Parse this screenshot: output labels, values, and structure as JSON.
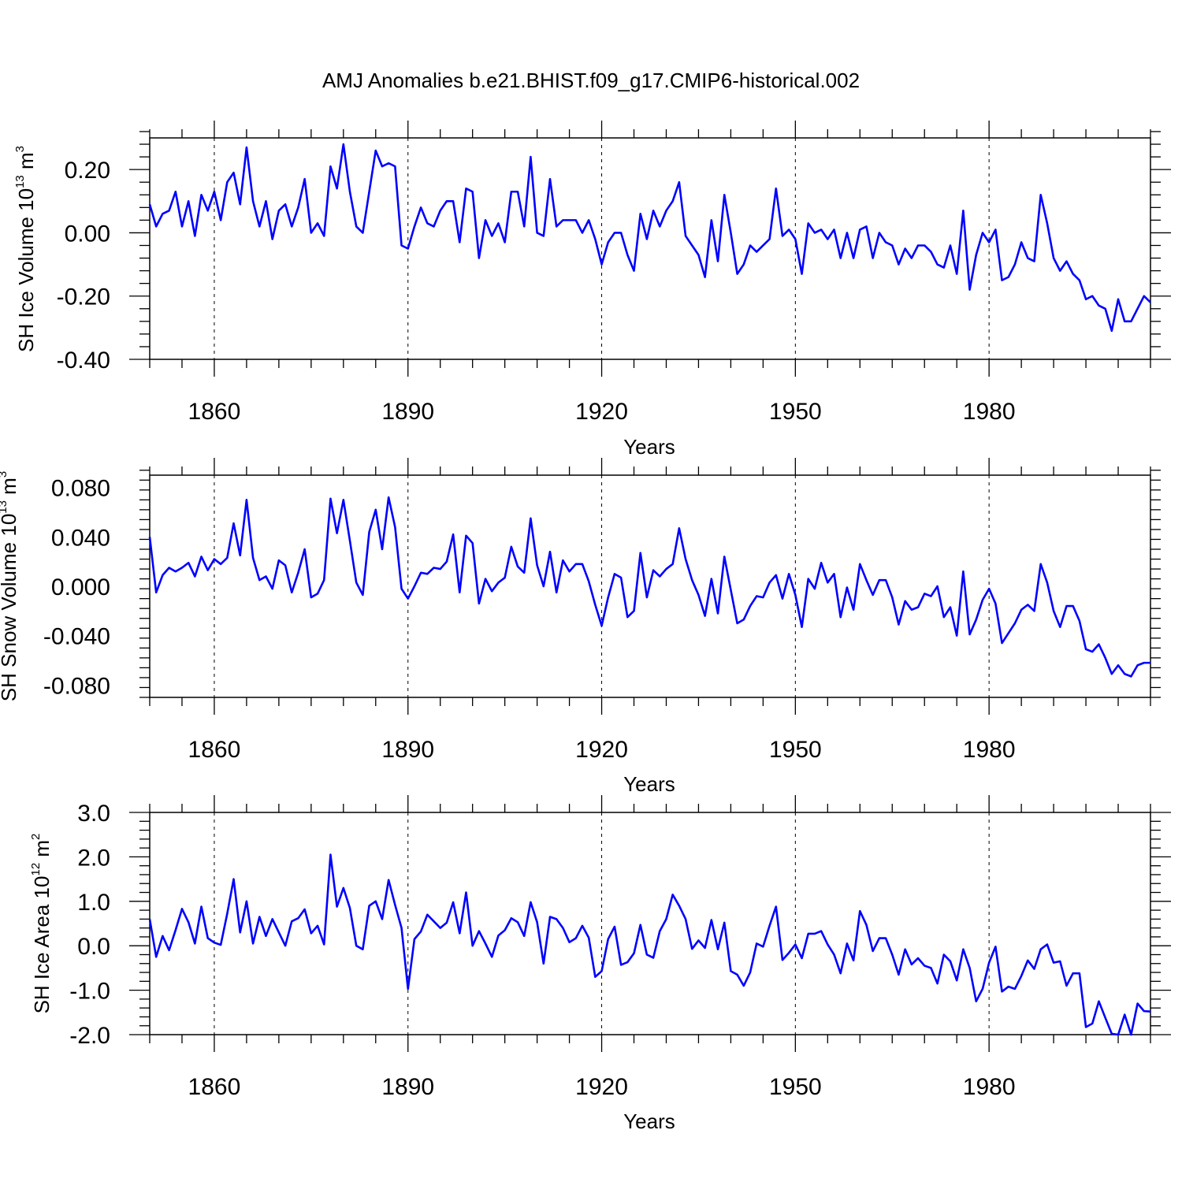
{
  "title": "AMJ Anomalies b.e21.BHIST.f09_g17.CMIP6-historical.002",
  "colors": {
    "series": "#0000ff",
    "frame": "#000000",
    "grid": "#000000"
  },
  "chart_data": [
    {
      "type": "line",
      "ylabel": {
        "text": "SH Ice Volume 10",
        "sup": "13",
        "unit": " m",
        "unit_sup": "3"
      },
      "xlabel": "Years",
      "xlim": [
        1850,
        2005
      ],
      "ylim": [
        -0.4,
        0.3
      ],
      "xticks": [
        1860,
        1890,
        1920,
        1950,
        1980
      ],
      "xtick_labels": [
        "1860",
        "1890",
        "1920",
        "1950",
        "1980"
      ],
      "yticks": [
        -0.4,
        -0.2,
        0.0,
        0.2
      ],
      "ytick_labels": [
        "-0.40",
        "-0.20",
        "0.00",
        "0.20"
      ],
      "grid": "vertical dashed at major x ticks",
      "series": [
        {
          "x_start": 1850,
          "x_step": 1,
          "values": [
            0.09,
            0.02,
            0.06,
            0.07,
            0.13,
            0.02,
            0.1,
            -0.01,
            0.12,
            0.07,
            0.13,
            0.04,
            0.16,
            0.19,
            0.09,
            0.27,
            0.1,
            0.02,
            0.1,
            -0.02,
            0.07,
            0.09,
            0.02,
            0.08,
            0.17,
            0.0,
            0.03,
            -0.01,
            0.21,
            0.14,
            0.28,
            0.13,
            0.02,
            0.0,
            0.13,
            0.26,
            0.21,
            0.22,
            0.21,
            -0.04,
            -0.05,
            0.02,
            0.08,
            0.03,
            0.02,
            0.07,
            0.1,
            0.1,
            -0.03,
            0.14,
            0.13,
            -0.08,
            0.04,
            -0.01,
            0.03,
            -0.03,
            0.13,
            0.13,
            0.02,
            0.24,
            0.0,
            -0.01,
            0.17,
            0.02,
            0.04,
            0.04,
            0.04,
            0.0,
            0.04,
            -0.02,
            -0.1,
            -0.03,
            0.0,
            0.0,
            -0.07,
            -0.12,
            0.06,
            -0.02,
            0.07,
            0.02,
            0.07,
            0.1,
            0.16,
            -0.01,
            -0.04,
            -0.07,
            -0.14,
            0.04,
            -0.09,
            0.12,
            0.0,
            -0.13,
            -0.1,
            -0.04,
            -0.06,
            -0.04,
            -0.02,
            0.14,
            -0.01,
            0.01,
            -0.02,
            -0.13,
            0.03,
            0.0,
            0.01,
            -0.02,
            0.01,
            -0.08,
            0.0,
            -0.08,
            0.01,
            0.02,
            -0.08,
            0.0,
            -0.03,
            -0.04,
            -0.1,
            -0.05,
            -0.08,
            -0.04,
            -0.04,
            -0.06,
            -0.1,
            -0.11,
            -0.04,
            -0.13,
            0.07,
            -0.18,
            -0.07,
            0.0,
            -0.03,
            0.01,
            -0.15,
            -0.14,
            -0.1,
            -0.03,
            -0.08,
            -0.09,
            0.12,
            0.03,
            -0.08,
            -0.12,
            -0.09,
            -0.13,
            -0.15,
            -0.21,
            -0.2,
            -0.23,
            -0.24,
            -0.31,
            -0.21,
            -0.28,
            -0.28,
            -0.24,
            -0.2,
            -0.22
          ]
        }
      ]
    },
    {
      "type": "line",
      "ylabel": {
        "text": "SH Snow Volume 10",
        "sup": "13",
        "unit": " m",
        "unit_sup": "3"
      },
      "xlabel": "Years",
      "xlim": [
        1850,
        2005
      ],
      "ylim": [
        -0.09,
        0.09
      ],
      "xticks": [
        1860,
        1890,
        1920,
        1950,
        1980
      ],
      "xtick_labels": [
        "1860",
        "1890",
        "1920",
        "1950",
        "1980"
      ],
      "yticks": [
        -0.08,
        -0.04,
        0.0,
        0.04,
        0.08
      ],
      "ytick_labels": [
        "-0.080",
        "-0.040",
        "0.000",
        "0.040",
        "0.080"
      ],
      "grid": "vertical dashed at major x ticks",
      "series": [
        {
          "x_start": 1850,
          "x_step": 1,
          "values": [
            0.04,
            -0.005,
            0.009,
            0.015,
            0.012,
            0.015,
            0.019,
            0.008,
            0.024,
            0.013,
            0.022,
            0.018,
            0.023,
            0.051,
            0.025,
            0.07,
            0.023,
            0.005,
            0.008,
            -0.002,
            0.021,
            0.017,
            -0.005,
            0.011,
            0.03,
            -0.009,
            -0.006,
            0.005,
            0.071,
            0.043,
            0.07,
            0.037,
            0.003,
            -0.007,
            0.044,
            0.062,
            0.03,
            0.072,
            0.048,
            -0.002,
            -0.01,
            0.0,
            0.011,
            0.01,
            0.015,
            0.014,
            0.02,
            0.042,
            -0.005,
            0.041,
            0.035,
            -0.014,
            0.006,
            -0.004,
            0.003,
            0.007,
            0.032,
            0.016,
            0.011,
            0.055,
            0.017,
            0.0,
            0.028,
            -0.005,
            0.021,
            0.012,
            0.018,
            0.018,
            0.004,
            -0.015,
            -0.032,
            -0.009,
            0.01,
            0.007,
            -0.025,
            -0.02,
            0.027,
            -0.009,
            0.013,
            0.008,
            0.014,
            0.018,
            0.047,
            0.022,
            0.005,
            -0.007,
            -0.024,
            0.006,
            -0.022,
            0.024,
            -0.003,
            -0.03,
            -0.027,
            -0.016,
            -0.008,
            -0.009,
            0.003,
            0.009,
            -0.01,
            0.01,
            -0.007,
            -0.033,
            0.006,
            -0.002,
            0.019,
            0.003,
            0.01,
            -0.025,
            -0.001,
            -0.019,
            0.018,
            0.005,
            -0.007,
            0.005,
            0.005,
            -0.009,
            -0.031,
            -0.012,
            -0.019,
            -0.017,
            -0.006,
            -0.008,
            0.0,
            -0.025,
            -0.017,
            -0.04,
            0.012,
            -0.039,
            -0.027,
            -0.011,
            -0.002,
            -0.014,
            -0.046,
            -0.038,
            -0.03,
            -0.019,
            -0.015,
            -0.02,
            0.018,
            0.003,
            -0.02,
            -0.033,
            -0.016,
            -0.016,
            -0.028,
            -0.051,
            -0.053,
            -0.047,
            -0.058,
            -0.071,
            -0.064,
            -0.071,
            -0.073,
            -0.064,
            -0.062,
            -0.062
          ]
        }
      ]
    },
    {
      "type": "line",
      "ylabel": {
        "text": "SH Ice Area 10",
        "sup": "12",
        "unit": " m",
        "unit_sup": "2"
      },
      "xlabel": "Years",
      "xlim": [
        1850,
        2005
      ],
      "ylim": [
        -2.0,
        3.0
      ],
      "xticks": [
        1860,
        1890,
        1920,
        1950,
        1980
      ],
      "xtick_labels": [
        "1860",
        "1890",
        "1920",
        "1950",
        "1980"
      ],
      "yticks": [
        -2.0,
        -1.0,
        0.0,
        1.0,
        2.0,
        3.0
      ],
      "ytick_labels": [
        "-2.0",
        "-1.0",
        "0.0",
        "1.0",
        "2.0",
        "3.0"
      ],
      "grid": "vertical dashed at major x ticks",
      "series": [
        {
          "x_start": 1850,
          "x_step": 1,
          "values": [
            0.6,
            -0.25,
            0.22,
            -0.1,
            0.35,
            0.83,
            0.53,
            0.05,
            0.88,
            0.17,
            0.07,
            0.02,
            0.72,
            1.5,
            0.3,
            1.0,
            0.05,
            0.65,
            0.22,
            0.6,
            0.3,
            0.0,
            0.55,
            0.62,
            0.82,
            0.28,
            0.45,
            0.03,
            2.05,
            0.88,
            1.3,
            0.85,
            0.0,
            -0.08,
            0.9,
            1.0,
            0.6,
            1.48,
            0.92,
            0.4,
            -0.97,
            0.15,
            0.32,
            0.7,
            0.55,
            0.4,
            0.52,
            0.98,
            0.28,
            1.2,
            0.0,
            0.33,
            0.05,
            -0.25,
            0.23,
            0.35,
            0.62,
            0.53,
            0.22,
            0.98,
            0.53,
            -0.4,
            0.65,
            0.6,
            0.4,
            0.08,
            0.17,
            0.45,
            0.18,
            -0.7,
            -0.57,
            0.15,
            0.43,
            -0.43,
            -0.37,
            -0.17,
            0.47,
            -0.2,
            -0.27,
            0.33,
            0.6,
            1.15,
            0.9,
            0.6,
            -0.07,
            0.12,
            -0.05,
            0.58,
            -0.08,
            0.52,
            -0.57,
            -0.65,
            -0.9,
            -0.6,
            0.05,
            -0.02,
            0.45,
            0.88,
            -0.32,
            -0.16,
            0.03,
            -0.28,
            0.27,
            0.27,
            0.33,
            0.03,
            -0.2,
            -0.62,
            0.05,
            -0.33,
            0.78,
            0.47,
            -0.12,
            0.17,
            0.17,
            -0.2,
            -0.65,
            -0.08,
            -0.42,
            -0.28,
            -0.45,
            -0.5,
            -0.85,
            -0.2,
            -0.35,
            -0.78,
            -0.08,
            -0.5,
            -1.25,
            -0.97,
            -0.38,
            -0.02,
            -1.03,
            -0.92,
            -0.97,
            -0.68,
            -0.33,
            -0.52,
            -0.08,
            0.03,
            -0.38,
            -0.35,
            -0.9,
            -0.62,
            -0.62,
            -1.83,
            -1.75,
            -1.25,
            -1.62,
            -1.98,
            -2.0,
            -1.55,
            -2.0,
            -1.3,
            -1.47,
            -1.48
          ]
        }
      ]
    }
  ]
}
